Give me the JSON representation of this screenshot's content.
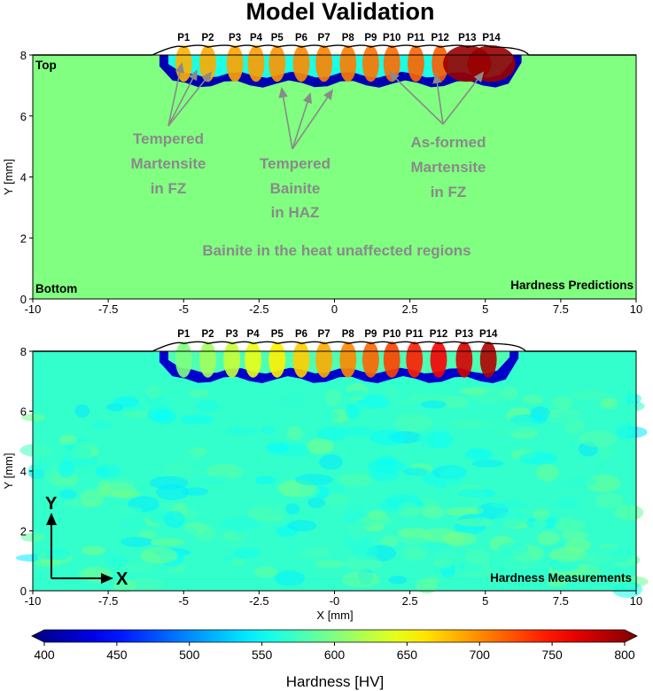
{
  "chart_data": {
    "title": "Model Validation",
    "type": "heatmap",
    "panels": [
      {
        "name": "Hardness Predictions",
        "xlabel": "",
        "ylabel": "Y [mm]",
        "xlim": [
          -10,
          10
        ],
        "ylim": [
          0,
          8
        ],
        "x_ticks": [
          "-10",
          "-7.5",
          "-5",
          "-2.5",
          "0",
          "2.5",
          "5",
          "7.5",
          "10"
        ],
        "y_ticks": [
          "0",
          "2",
          "4",
          "6",
          "8"
        ],
        "corner_labels": {
          "top_left": "Top",
          "bottom_left": "Bottom",
          "bottom_right": "Hardness Predictions"
        },
        "pass_labels": [
          "P1",
          "P2",
          "P3",
          "P4",
          "P5",
          "P6",
          "P7",
          "P8",
          "P9",
          "P10",
          "P11",
          "P12",
          "P13",
          "P14"
        ],
        "pass_x": [
          -5.0,
          -4.2,
          -3.3,
          -2.6,
          -1.9,
          -1.1,
          -0.35,
          0.45,
          1.2,
          1.9,
          2.7,
          3.5,
          4.4,
          5.2
        ],
        "base_hardness": 600,
        "annotations": [
          {
            "lines": [
              "Tempered",
              "Martensite",
              "in FZ"
            ]
          },
          {
            "lines": [
              "Tempered",
              "Bainite",
              "in HAZ"
            ]
          },
          {
            "lines": [
              "As-formed",
              "Martensite",
              "in FZ"
            ]
          },
          {
            "lines": [
              "Bainite in the heat unaffected regions"
            ]
          }
        ]
      },
      {
        "name": "Hardness Measurements",
        "xlabel": "X [mm]",
        "ylabel": "Y [mm]",
        "xlim": [
          -10,
          10
        ],
        "ylim": [
          0,
          8
        ],
        "x_ticks": [
          "-10",
          "-7.5",
          "-5",
          "-2.5",
          "-0",
          "2.5",
          "5",
          "7.5",
          "10"
        ],
        "y_ticks": [
          "0",
          "2",
          "4",
          "6",
          "8"
        ],
        "corner_labels": {
          "bottom_right": "Hardness Measurements"
        },
        "pass_labels": [
          "P1",
          "P2",
          "P3",
          "P4",
          "P5",
          "P6",
          "P7",
          "P8",
          "P9",
          "P10",
          "P11",
          "P12",
          "P13",
          "P14"
        ],
        "pass_x": [
          -5.0,
          -4.2,
          -3.4,
          -2.7,
          -1.9,
          -1.1,
          -0.35,
          0.45,
          1.2,
          1.9,
          2.65,
          3.45,
          4.3,
          5.1
        ],
        "base_hardness": 570,
        "axis_glyph": {
          "y": "Y",
          "x": "X"
        }
      }
    ],
    "colorbar": {
      "label": "Hardness [HV]",
      "range": [
        400,
        800
      ],
      "ticks": [
        "400",
        "450",
        "500",
        "550",
        "600",
        "650",
        "700",
        "750",
        "800"
      ],
      "colormap": "jet"
    }
  }
}
